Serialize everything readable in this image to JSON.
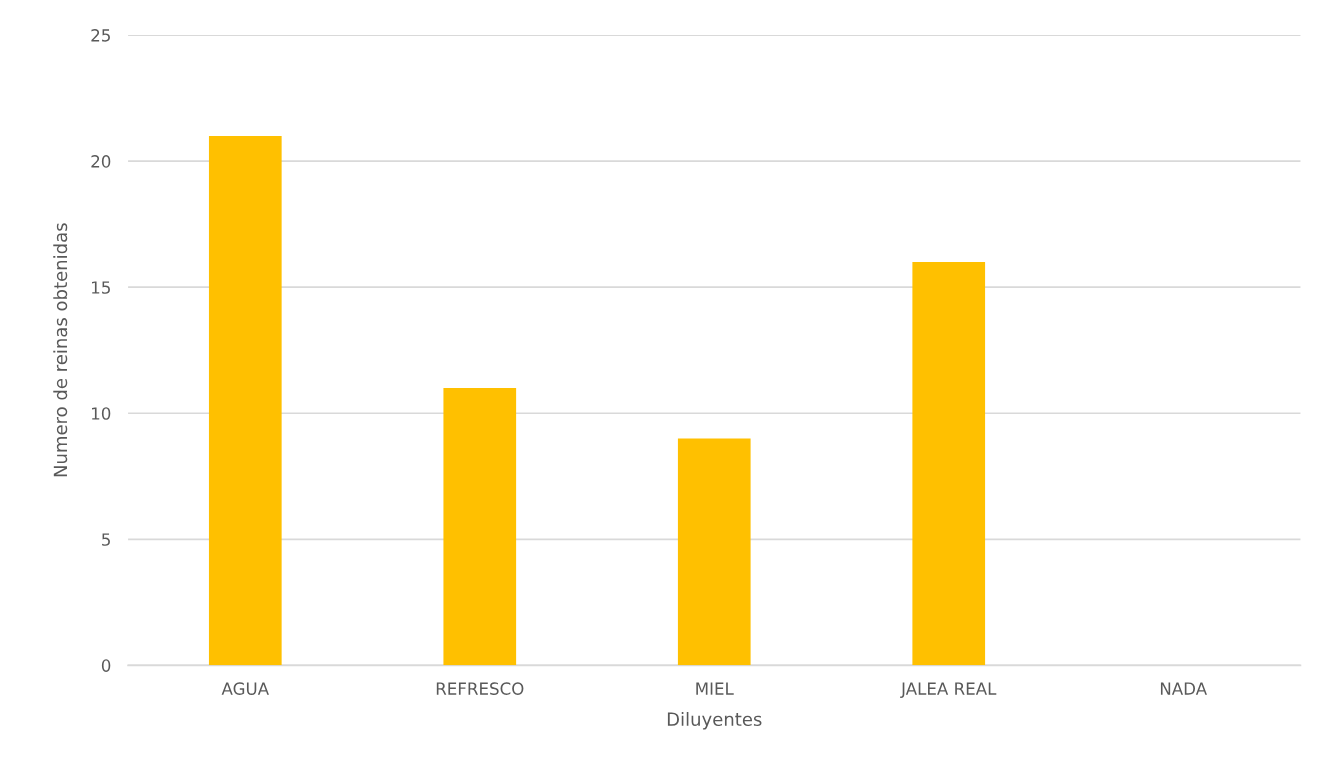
{
  "chart_data": {
    "type": "bar",
    "xlabel": "Diluyentes",
    "ylabel": "Numero de reinas obtenidas",
    "categories": [
      "AGUA",
      "REFRESCO",
      "MIEL",
      "JALEA REAL",
      "NADA"
    ],
    "values": [
      21,
      11,
      9,
      16,
      0
    ],
    "color": "#ffc000",
    "ylim": [
      0,
      25
    ],
    "yticks": [
      0,
      5,
      10,
      15,
      20,
      25
    ],
    "grid": "y",
    "legend": false
  }
}
